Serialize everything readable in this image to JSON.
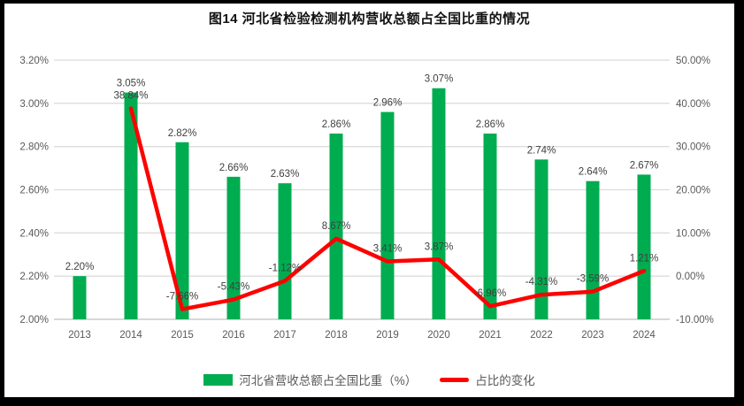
{
  "title": "图14 河北省检验检测机构营收总额占全国比重的情况",
  "legend": {
    "bar_series_label": "河北省营收总额占全国比重（%）",
    "line_series_label": "占比的变化"
  },
  "colors": {
    "bar": "#00AC50",
    "line": "#FF0000",
    "grid": "#DCDCDC",
    "axis_line": "#C0C0C0",
    "axis_text": "#595959",
    "data_label_text": "#3F3F3F",
    "frame": "#000000"
  },
  "chart_data": {
    "type": "bar",
    "subtype": "bar+line combo, dual axis",
    "title": "图14 河北省检验检测机构营收总额占全国比重的情况",
    "categories": [
      "2013",
      "2014",
      "2015",
      "2016",
      "2017",
      "2018",
      "2019",
      "2020",
      "2021",
      "2022",
      "2023",
      "2024"
    ],
    "series": [
      {
        "name": "河北省营收总额占全国比重（%）",
        "type": "bar",
        "axis": "left",
        "color": "#00AC50",
        "values": [
          2.2,
          3.05,
          2.82,
          2.66,
          2.63,
          2.86,
          2.96,
          3.07,
          2.86,
          2.74,
          2.64,
          2.67
        ],
        "labels": [
          "2.20%",
          "3.05%",
          "2.82%",
          "2.66%",
          "2.63%",
          "2.86%",
          "2.96%",
          "3.07%",
          "2.86%",
          "2.74%",
          "2.64%",
          "2.67%"
        ]
      },
      {
        "name": "占比的变化",
        "type": "line",
        "axis": "right",
        "color": "#FF0000",
        "values": [
          null,
          38.84,
          -7.66,
          -5.43,
          -1.12,
          8.67,
          3.41,
          3.87,
          -6.96,
          -4.31,
          -3.59,
          1.21
        ],
        "labels": [
          null,
          "38.84%",
          "-7.66%",
          "-5.43%",
          "-1.12%",
          "8.67%",
          "3.41%",
          "3.87%",
          "-6.96%",
          "-4.31%",
          "-3.59%",
          "1.21%"
        ]
      }
    ],
    "left_axis": {
      "min": 2.0,
      "max": 3.2,
      "step": 0.2,
      "ticks": [
        "3.20%",
        "3.00%",
        "2.80%",
        "2.60%",
        "2.40%",
        "2.20%",
        "2.00%"
      ]
    },
    "right_axis": {
      "min": -10.0,
      "max": 50.0,
      "step": 10.0,
      "ticks": [
        "50.00%",
        "40.00%",
        "30.00%",
        "20.00%",
        "10.00%",
        "0.00%",
        "-10.00%"
      ]
    },
    "grid": true,
    "legend_position": "bottom",
    "xlabel": "",
    "ylabel": ""
  }
}
